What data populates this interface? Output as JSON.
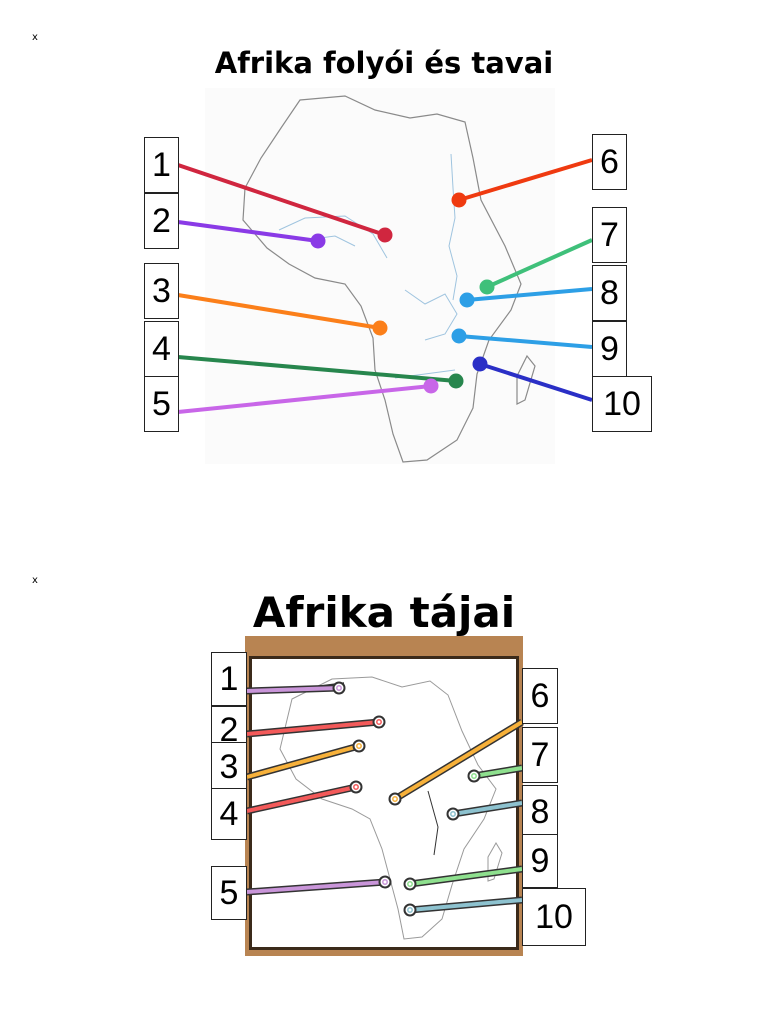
{
  "page": {
    "markers": [
      "x",
      "x"
    ]
  },
  "section1": {
    "title": "Afrika folyói és tavai",
    "labels": [
      "1",
      "2",
      "3",
      "4",
      "5",
      "6",
      "7",
      "8",
      "9",
      "10"
    ],
    "colors": {
      "1": "#d0263f",
      "2": "#8a3ae6",
      "3": "#fb7f1a",
      "4": "#27864d",
      "5": "#c866e8",
      "6": "#ef3a10",
      "7": "#3fc07a",
      "8": "#2d9fe6",
      "9": "#2d9fe6",
      "10": "#2a2fc6"
    }
  },
  "section2": {
    "title": "Afrika tájai",
    "labels": [
      "1",
      "2",
      "3",
      "4",
      "5",
      "6",
      "7",
      "8",
      "9",
      "10"
    ],
    "colors": {
      "1": "#c995d9",
      "2": "#f35a5a",
      "3": "#f7b13a",
      "4": "#f35a5a",
      "5": "#c995d9",
      "6": "#f7b13a",
      "7": "#8ee08e",
      "8": "#8dc2cf",
      "9": "#8ee08e",
      "10": "#8dc2cf"
    }
  }
}
